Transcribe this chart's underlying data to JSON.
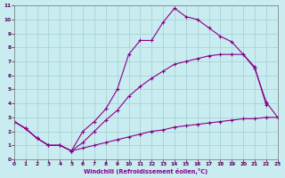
{
  "xlabel": "Windchill (Refroidissement éolien,°C)",
  "bg_color": "#c8ecf0",
  "grid_color": "#aad4d8",
  "line_color": "#880088",
  "xlim": [
    0,
    23
  ],
  "ylim": [
    0,
    11
  ],
  "xticks": [
    0,
    1,
    2,
    3,
    4,
    5,
    6,
    7,
    8,
    9,
    10,
    11,
    12,
    13,
    14,
    15,
    16,
    17,
    18,
    19,
    20,
    21,
    22,
    23
  ],
  "yticks": [
    0,
    1,
    2,
    3,
    4,
    5,
    6,
    7,
    8,
    9,
    10,
    11
  ],
  "curve1_x": [
    0,
    1,
    2,
    3,
    4,
    5,
    6,
    7,
    8,
    9,
    10,
    11,
    12,
    13,
    14,
    15,
    16,
    17,
    18,
    19,
    20,
    21,
    22
  ],
  "curve1_y": [
    2.7,
    2.2,
    1.5,
    1.0,
    1.0,
    0.6,
    2.0,
    2.7,
    3.6,
    5.0,
    7.5,
    8.5,
    8.5,
    9.8,
    10.8,
    10.2,
    10.0,
    9.4,
    8.8,
    8.4,
    7.5,
    6.6,
    3.9
  ],
  "curve2_x": [
    0,
    1,
    2,
    3,
    4,
    5,
    6,
    7,
    8,
    9,
    10,
    11,
    12,
    13,
    14,
    15,
    16,
    17,
    18,
    19,
    20,
    21,
    22,
    23
  ],
  "curve2_y": [
    2.7,
    2.2,
    1.5,
    1.0,
    1.0,
    0.6,
    1.2,
    2.0,
    2.8,
    3.5,
    4.5,
    5.2,
    5.8,
    6.3,
    6.8,
    7.0,
    7.2,
    7.4,
    7.5,
    7.5,
    7.5,
    6.5,
    4.1,
    3.0
  ],
  "curve3_x": [
    0,
    1,
    2,
    3,
    4,
    5,
    6,
    7,
    8,
    9,
    10,
    11,
    12,
    13,
    14,
    15,
    16,
    17,
    18,
    19,
    20,
    21,
    22,
    23
  ],
  "curve3_y": [
    2.7,
    2.2,
    1.5,
    1.0,
    1.0,
    0.6,
    0.8,
    1.0,
    1.2,
    1.4,
    1.6,
    1.8,
    2.0,
    2.1,
    2.3,
    2.4,
    2.5,
    2.6,
    2.7,
    2.8,
    2.9,
    2.9,
    3.0,
    3.0
  ]
}
